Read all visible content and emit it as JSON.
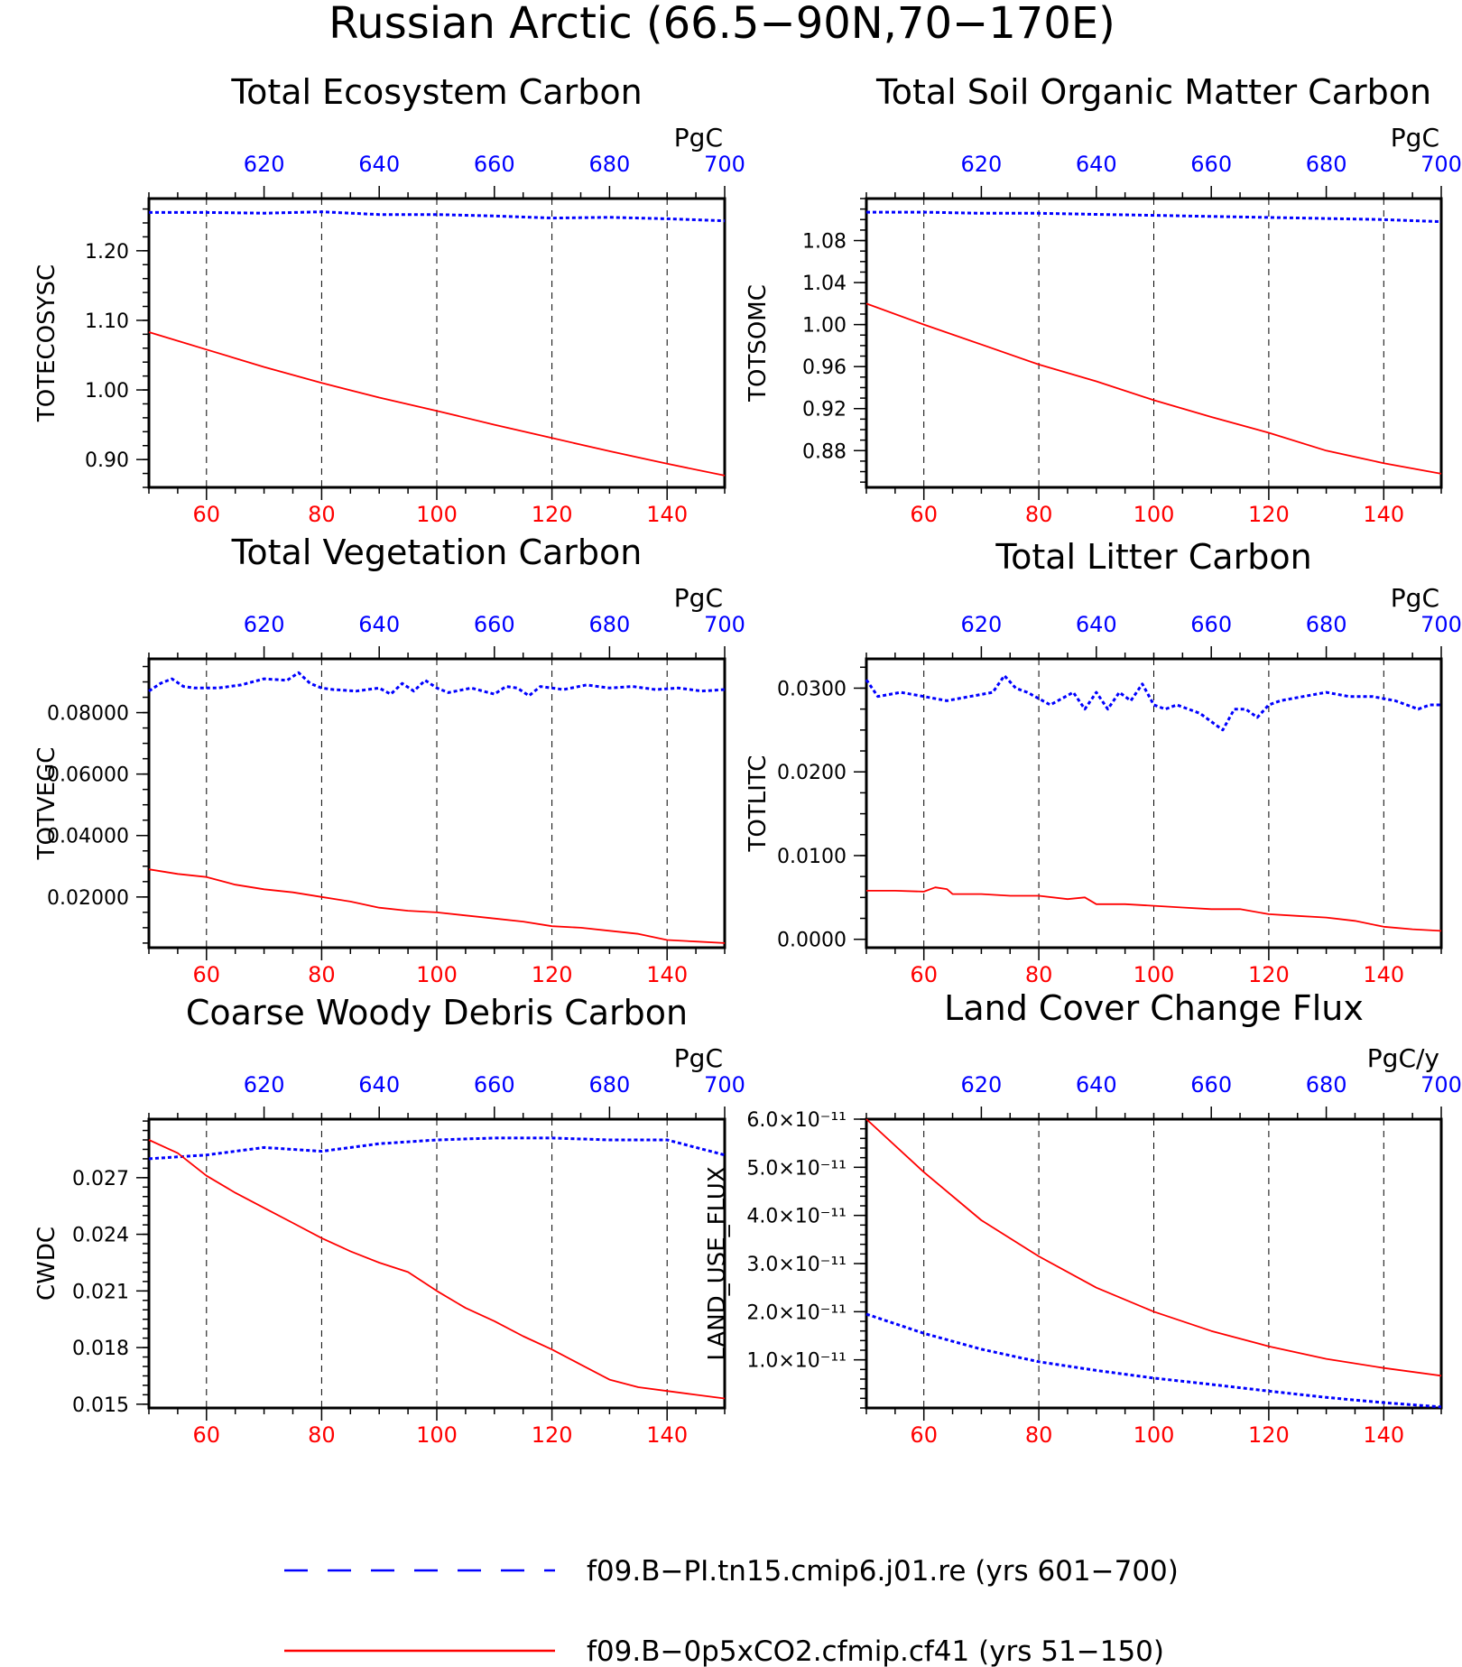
{
  "figure": {
    "title": "Russian Arctic (66.5−90N,70−170E)"
  },
  "colors": {
    "control": "#0000ff",
    "experiment": "#ff0000",
    "frame": "#000000",
    "grid": "#000000"
  },
  "legend": {
    "items": [
      {
        "name": "f09.B−PI.tn15.cmip6.j01.re (yrs 601−700)",
        "color": "#0000ff",
        "style": "dashed"
      },
      {
        "name": "f09.B−0p5xCO2.cfmip.cf41 (yrs 51−150)",
        "color": "#ff0000",
        "style": "solid"
      }
    ]
  },
  "chart_data": [
    {
      "type": "line",
      "title": "Total Ecosystem Carbon",
      "ylabel": "TOTECOSYSC",
      "units": "PgC",
      "xlim_bottom": [
        50,
        150
      ],
      "xlim_top": [
        600,
        700
      ],
      "x_bottom_ticks": [
        60,
        80,
        100,
        120,
        140
      ],
      "x_top_ticks": [
        620,
        640,
        660,
        680,
        700
      ],
      "ylim": [
        0.86,
        1.275
      ],
      "y_ticks": [
        0.9,
        1.0,
        1.1,
        1.2
      ],
      "y_tick_labels": [
        "0.90",
        "1.00",
        "1.10",
        "1.20"
      ],
      "y_minor": 0.02,
      "series": [
        {
          "name": "f09.B−PI.tn15.cmip6.j01.re (yrs 601−700)",
          "axis": "top",
          "style": "dashed",
          "x": [
            600,
            610,
            620,
            630,
            640,
            650,
            660,
            670,
            680,
            690,
            700
          ],
          "y": [
            1.255,
            1.255,
            1.254,
            1.256,
            1.252,
            1.252,
            1.25,
            1.247,
            1.248,
            1.246,
            1.243
          ]
        },
        {
          "name": "f09.B−0p5xCO2.cfmip.cf41 (yrs 51−150)",
          "axis": "bottom",
          "style": "solid",
          "x": [
            50,
            60,
            70,
            80,
            90,
            100,
            110,
            120,
            130,
            140,
            150
          ],
          "y": [
            1.083,
            1.058,
            1.033,
            1.01,
            0.989,
            0.97,
            0.95,
            0.931,
            0.912,
            0.894,
            0.877
          ]
        }
      ]
    },
    {
      "type": "line",
      "title": "Total Soil Organic Matter Carbon",
      "ylabel": "TOTSOMC",
      "units": "PgC",
      "xlim_bottom": [
        50,
        150
      ],
      "xlim_top": [
        600,
        700
      ],
      "x_bottom_ticks": [
        60,
        80,
        100,
        120,
        140
      ],
      "x_top_ticks": [
        620,
        640,
        660,
        680,
        700
      ],
      "ylim": [
        0.845,
        1.12
      ],
      "y_ticks": [
        0.88,
        0.92,
        0.96,
        1.0,
        1.04,
        1.08
      ],
      "y_tick_labels": [
        "0.88",
        "0.92",
        "0.96",
        "1.00",
        "1.04",
        "1.08"
      ],
      "y_minor": 0.01,
      "series": [
        {
          "name": "f09.B−PI.tn15.cmip6.j01.re (yrs 601−700)",
          "axis": "top",
          "style": "dashed",
          "x": [
            600,
            610,
            620,
            630,
            640,
            650,
            660,
            670,
            680,
            690,
            700
          ],
          "y": [
            1.107,
            1.107,
            1.106,
            1.106,
            1.105,
            1.104,
            1.103,
            1.102,
            1.101,
            1.1,
            1.098
          ]
        },
        {
          "name": "f09.B−0p5xCO2.cfmip.cf41 (yrs 51−150)",
          "axis": "bottom",
          "style": "solid",
          "x": [
            50,
            60,
            70,
            80,
            90,
            100,
            110,
            120,
            130,
            140,
            150
          ],
          "y": [
            1.02,
            1.0,
            0.981,
            0.962,
            0.946,
            0.928,
            0.912,
            0.897,
            0.88,
            0.868,
            0.858
          ]
        }
      ]
    },
    {
      "type": "line",
      "title": "Total Vegetation Carbon",
      "ylabel": "TOTVEGC",
      "units": "PgC",
      "xlim_bottom": [
        50,
        150
      ],
      "xlim_top": [
        600,
        700
      ],
      "x_bottom_ticks": [
        60,
        80,
        100,
        120,
        140
      ],
      "x_top_ticks": [
        620,
        640,
        660,
        680,
        700
      ],
      "ylim": [
        0.0035,
        0.0975
      ],
      "y_ticks": [
        0.02,
        0.04,
        0.06,
        0.08
      ],
      "y_tick_labels": [
        "0.02000",
        "0.04000",
        "0.06000",
        "0.08000"
      ],
      "y_minor": 0.005,
      "series": [
        {
          "name": "f09.B−PI.tn15.cmip6.j01.re (yrs 601−700)",
          "axis": "top",
          "style": "dashed",
          "x": [
            600,
            602,
            604,
            606,
            608,
            612,
            616,
            620,
            624,
            626,
            628,
            630,
            632,
            636,
            640,
            642,
            644,
            646,
            648,
            650,
            652,
            656,
            660,
            662,
            664,
            666,
            668,
            672,
            676,
            680,
            684,
            688,
            692,
            696,
            700
          ],
          "y": [
            0.087,
            0.0895,
            0.091,
            0.0885,
            0.088,
            0.088,
            0.089,
            0.091,
            0.0905,
            0.093,
            0.0895,
            0.088,
            0.0875,
            0.087,
            0.088,
            0.086,
            0.0895,
            0.087,
            0.0905,
            0.088,
            0.0865,
            0.088,
            0.086,
            0.0885,
            0.088,
            0.0855,
            0.0885,
            0.0875,
            0.089,
            0.088,
            0.0885,
            0.0875,
            0.088,
            0.087,
            0.0875
          ]
        },
        {
          "name": "f09.B−0p5xCO2.cfmip.cf41 (yrs 51−150)",
          "axis": "bottom",
          "style": "solid",
          "x": [
            50,
            55,
            60,
            65,
            70,
            75,
            80,
            85,
            90,
            95,
            100,
            105,
            110,
            115,
            120,
            125,
            130,
            135,
            140,
            145,
            150
          ],
          "y": [
            0.029,
            0.0275,
            0.0265,
            0.024,
            0.0225,
            0.0215,
            0.02,
            0.0185,
            0.0165,
            0.0155,
            0.015,
            0.014,
            0.013,
            0.012,
            0.0105,
            0.01,
            0.009,
            0.008,
            0.006,
            0.0055,
            0.005
          ]
        }
      ]
    },
    {
      "type": "line",
      "title": "Total Litter Carbon",
      "ylabel": "TOTLITC",
      "units": "PgC",
      "xlim_bottom": [
        50,
        150
      ],
      "xlim_top": [
        600,
        700
      ],
      "x_bottom_ticks": [
        60,
        80,
        100,
        120,
        140
      ],
      "x_top_ticks": [
        620,
        640,
        660,
        680,
        700
      ],
      "ylim": [
        -0.001,
        0.0335
      ],
      "y_ticks": [
        0.0,
        0.01,
        0.02,
        0.03
      ],
      "y_tick_labels": [
        "0.0000",
        "0.0100",
        "0.0200",
        "0.0300"
      ],
      "y_minor": 0.0025,
      "series": [
        {
          "name": "f09.B−PI.tn15.cmip6.j01.re (yrs 601−700)",
          "axis": "top",
          "style": "dashed",
          "x": [
            600,
            602,
            606,
            610,
            614,
            618,
            622,
            624,
            626,
            628,
            632,
            636,
            638,
            640,
            642,
            644,
            646,
            648,
            650,
            652,
            654,
            658,
            662,
            664,
            666,
            668,
            670,
            672,
            676,
            680,
            684,
            688,
            692,
            696,
            698,
            700
          ],
          "y": [
            0.031,
            0.029,
            0.0295,
            0.029,
            0.0285,
            0.029,
            0.0295,
            0.0315,
            0.03,
            0.0295,
            0.028,
            0.0295,
            0.0275,
            0.0295,
            0.0275,
            0.0295,
            0.0285,
            0.0305,
            0.028,
            0.0275,
            0.028,
            0.027,
            0.025,
            0.0275,
            0.0275,
            0.0265,
            0.028,
            0.0285,
            0.029,
            0.0295,
            0.029,
            0.029,
            0.0285,
            0.0275,
            0.028,
            0.028
          ]
        },
        {
          "name": "f09.B−0p5xCO2.cfmip.cf41 (yrs 51−150)",
          "axis": "bottom",
          "style": "solid",
          "x": [
            50,
            55,
            60,
            62,
            64,
            65,
            70,
            75,
            80,
            85,
            88,
            90,
            95,
            100,
            105,
            110,
            115,
            120,
            125,
            130,
            135,
            140,
            145,
            150
          ],
          "y": [
            0.0058,
            0.0058,
            0.0057,
            0.0062,
            0.006,
            0.0054,
            0.0054,
            0.0052,
            0.0052,
            0.0048,
            0.005,
            0.0042,
            0.0042,
            0.004,
            0.0038,
            0.0036,
            0.0036,
            0.003,
            0.0028,
            0.0026,
            0.0022,
            0.0015,
            0.0012,
            0.001
          ]
        }
      ]
    },
    {
      "type": "line",
      "title": "Coarse Woody Debris Carbon",
      "ylabel": "CWDC",
      "units": "PgC",
      "xlim_bottom": [
        50,
        150
      ],
      "xlim_top": [
        600,
        700
      ],
      "x_bottom_ticks": [
        60,
        80,
        100,
        120,
        140
      ],
      "x_top_ticks": [
        620,
        640,
        660,
        680,
        700
      ],
      "ylim": [
        0.0148,
        0.0301
      ],
      "y_ticks": [
        0.015,
        0.018,
        0.021,
        0.024,
        0.027
      ],
      "y_tick_labels": [
        "0.015",
        "0.018",
        "0.021",
        "0.024",
        "0.027"
      ],
      "y_minor": 0.0005,
      "series": [
        {
          "name": "f09.B−PI.tn15.cmip6.j01.re (yrs 601−700)",
          "axis": "top",
          "style": "dashed",
          "x": [
            600,
            610,
            620,
            630,
            640,
            650,
            660,
            670,
            680,
            690,
            700
          ],
          "y": [
            0.028,
            0.0282,
            0.0286,
            0.0284,
            0.0288,
            0.029,
            0.0291,
            0.0291,
            0.029,
            0.029,
            0.0282
          ]
        },
        {
          "name": "f09.B−0p5xCO2.cfmip.cf41 (yrs 51−150)",
          "axis": "bottom",
          "style": "solid",
          "x": [
            50,
            55,
            60,
            65,
            70,
            75,
            80,
            85,
            90,
            95,
            100,
            105,
            110,
            115,
            120,
            125,
            130,
            135,
            140,
            145,
            150
          ],
          "y": [
            0.029,
            0.0283,
            0.0271,
            0.0262,
            0.0254,
            0.0246,
            0.0238,
            0.0231,
            0.0225,
            0.022,
            0.021,
            0.0201,
            0.0194,
            0.0186,
            0.0179,
            0.0171,
            0.0163,
            0.0159,
            0.0157,
            0.0155,
            0.0153
          ]
        }
      ]
    },
    {
      "type": "line",
      "title": "Land Cover Change Flux",
      "ylabel": "LAND_USE_FLUX",
      "units": "PgC/y",
      "xlim_bottom": [
        50,
        150
      ],
      "xlim_top": [
        600,
        700
      ],
      "x_bottom_ticks": [
        60,
        80,
        100,
        120,
        140
      ],
      "x_top_ticks": [
        620,
        640,
        660,
        680,
        700
      ],
      "ylim": [
        0,
        6e-11
      ],
      "y_ticks": [
        1e-11,
        2e-11,
        3e-11,
        4e-11,
        5e-11,
        6e-11
      ],
      "y_tick_labels": [
        "1.0×10⁻¹¹",
        "2.0×10⁻¹¹",
        "3.0×10⁻¹¹",
        "4.0×10⁻¹¹",
        "5.0×10⁻¹¹",
        "6.0×10⁻¹¹"
      ],
      "y_minor": 2e-12,
      "series": [
        {
          "name": "f09.B−PI.tn15.cmip6.j01.re (yrs 601−700)",
          "axis": "top",
          "style": "dashed",
          "x": [
            600,
            610,
            620,
            630,
            640,
            650,
            660,
            670,
            680,
            690,
            700
          ],
          "y": [
            1.95e-11,
            1.55e-11,
            1.22e-11,
            9.6e-12,
            7.8e-12,
            6.2e-12,
            4.9e-12,
            3.5e-12,
            2.2e-12,
            1.1e-12,
            2e-13
          ]
        },
        {
          "name": "f09.B−0p5xCO2.cfmip.cf41 (yrs 51−150)",
          "axis": "bottom",
          "style": "solid",
          "x": [
            50,
            60,
            70,
            80,
            90,
            100,
            110,
            120,
            130,
            140,
            150
          ],
          "y": [
            6e-11,
            4.9e-11,
            3.9e-11,
            3.15e-11,
            2.5e-11,
            2e-11,
            1.6e-11,
            1.28e-11,
            1.02e-11,
            8.3e-12,
            6.7e-12
          ]
        }
      ]
    }
  ]
}
